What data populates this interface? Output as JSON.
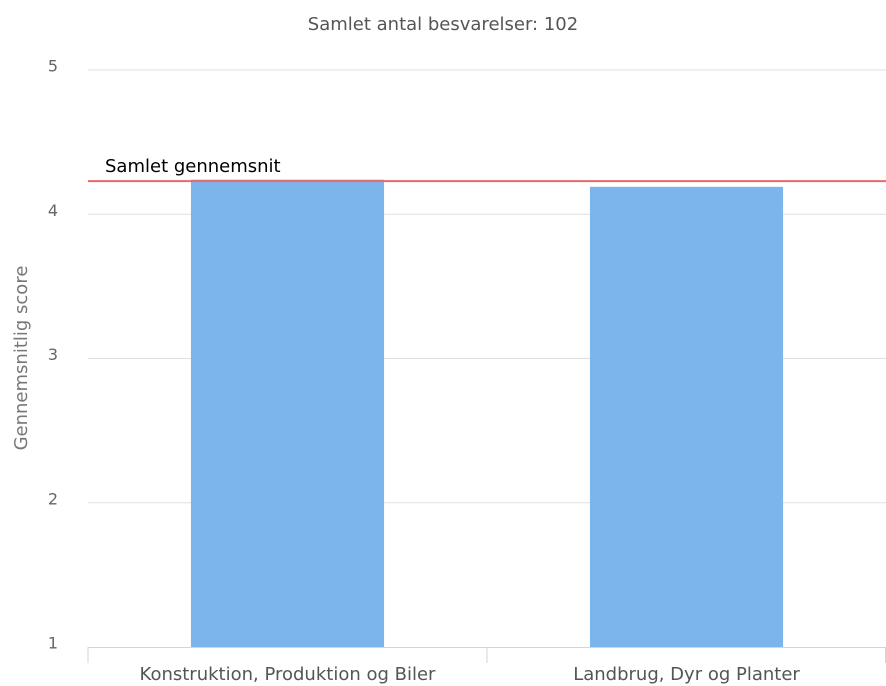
{
  "chart_data": {
    "type": "bar",
    "title": "Samlet antal besvarelser: 102",
    "y_label": "Gennemsnitlig score",
    "categories": [
      "Konstruktion, Produktion og Biler",
      "Landbrug, Dyr og Planter"
    ],
    "values": [
      4.24,
      4.19
    ],
    "color": "#7cb5ec",
    "ylim": [
      1,
      5
    ],
    "yticks": [
      1,
      2,
      3,
      4,
      5
    ],
    "grid": true,
    "reference_line": {
      "label": "Samlet gennemsnit",
      "value": 4.23,
      "color": "#e8686a"
    }
  }
}
